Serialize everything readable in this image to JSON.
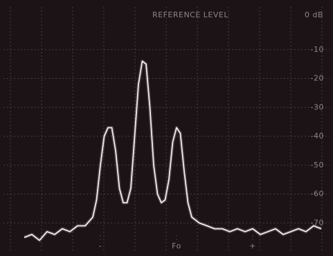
{
  "chart_data": {
    "type": "line",
    "reference_label": "REFERENCE LEVEL",
    "reference_value": "0 dB",
    "color": "#f4eeee",
    "grid": true,
    "x": [
      -2.0,
      -1.9,
      -1.8,
      -1.7,
      -1.6,
      -1.5,
      -1.4,
      -1.3,
      -1.2,
      -1.1,
      -1.05,
      -1.0,
      -0.95,
      -0.9,
      -0.85,
      -0.8,
      -0.75,
      -0.7,
      -0.65,
      -0.6,
      -0.55,
      -0.5,
      -0.45,
      -0.4,
      -0.35,
      -0.3,
      -0.25,
      -0.2,
      -0.15,
      -0.1,
      -0.05,
      0,
      0.05,
      0.1,
      0.15,
      0.2,
      0.3,
      0.4,
      0.5,
      0.6,
      0.7,
      0.8,
      0.9,
      1.0,
      1.1,
      1.2,
      1.3,
      1.4,
      1.5,
      1.6,
      1.7,
      1.8,
      1.9
    ],
    "values": [
      -75,
      -74,
      -76,
      -73,
      -74,
      -72,
      -73,
      -71,
      -71,
      -68,
      -62,
      -50,
      -40,
      -37,
      -37,
      -45,
      -58,
      -63,
      -63,
      -58,
      -40,
      -22,
      -14,
      -15,
      -30,
      -50,
      -60,
      -63,
      -62,
      -55,
      -42,
      -37,
      -39,
      -52,
      -63,
      -68,
      -70,
      -71,
      -72,
      -72,
      -73,
      -72,
      -73,
      -72,
      -74,
      -73,
      -72,
      -74,
      -73,
      -72,
      -73,
      -71,
      -72
    ],
    "xlim": [
      -2.05,
      1.95
    ],
    "xticks": [
      {
        "value": -1,
        "label": "-"
      },
      {
        "value": 0,
        "label": "Fo"
      },
      {
        "value": 1,
        "label": "+"
      }
    ],
    "ylim": [
      -80,
      0
    ],
    "yticks": [
      {
        "value": -10,
        "label": "-10"
      },
      {
        "value": -20,
        "label": "-20"
      },
      {
        "value": -30,
        "label": "-30"
      },
      {
        "value": -40,
        "label": "-40"
      },
      {
        "value": -50,
        "label": "-50"
      },
      {
        "value": -60,
        "label": "-60"
      },
      {
        "value": -70,
        "label": "-70"
      }
    ]
  }
}
